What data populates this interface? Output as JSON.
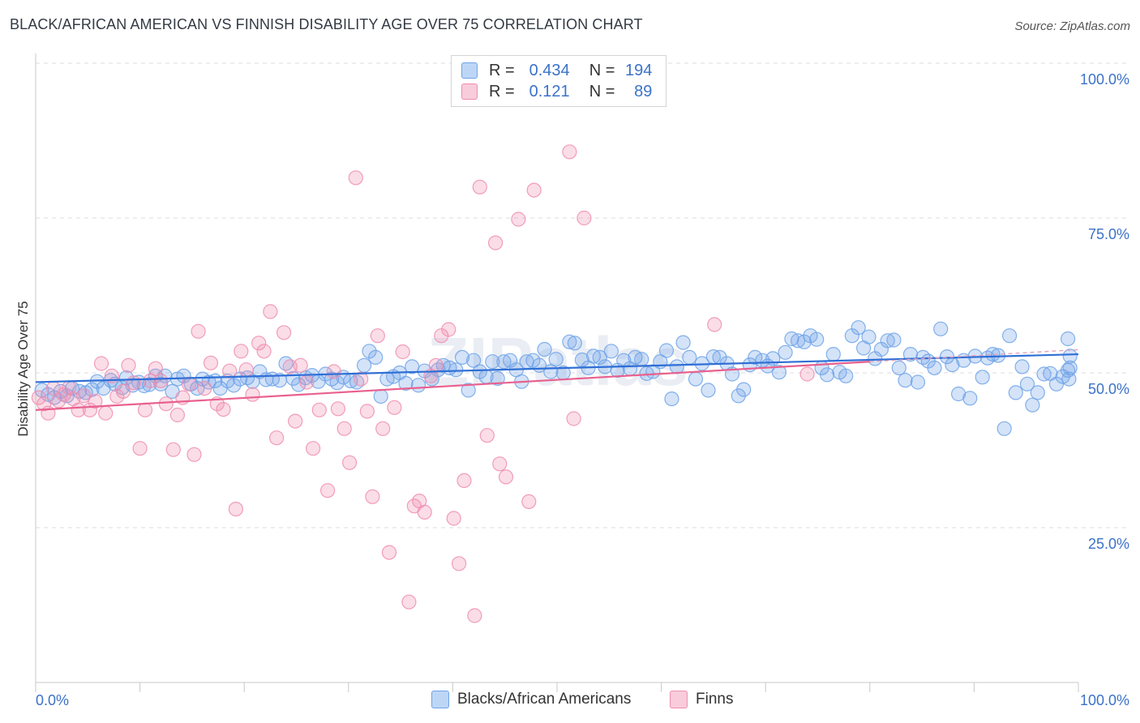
{
  "title": "BLACK/AFRICAN AMERICAN VS FINNISH DISABILITY AGE OVER 75 CORRELATION CHART",
  "source": "Source: ZipAtlas.com",
  "watermark": "ZIPatlas",
  "legend_top": {
    "r_label": "R =",
    "n_label": "N =",
    "rows": [
      {
        "r": "0.434",
        "n": "194",
        "color": "#6fa3e8"
      },
      {
        "r": "0.121",
        "n": "89",
        "color": "#f08db0"
      }
    ]
  },
  "bottom_legend": [
    "Blacks/African Americans",
    "Finns"
  ],
  "chart_data": {
    "type": "scatter",
    "xlabel": "",
    "ylabel": "Disability Age Over 75",
    "x_tick_labels": {
      "left": "0.0%",
      "right": "100.0%"
    },
    "y_tick_labels": [
      "100.0%",
      "75.0%",
      "50.0%",
      "25.0%"
    ],
    "xlim": [
      0,
      100
    ],
    "ylim": [
      0,
      100
    ],
    "grid": "horizontal dashed",
    "legend_position": "top-center",
    "series": [
      {
        "name": "Blacks/African Americans",
        "color": "#6fa3e8",
        "trend": {
          "x0": 0,
          "y0": 48.5,
          "x1": 100,
          "y1": 53.0
        },
        "points": [
          [
            0.6,
            47.2
          ],
          [
            1.2,
            46.5
          ],
          [
            1.8,
            46.0
          ],
          [
            2.4,
            47.0
          ],
          [
            3.0,
            46.3
          ],
          [
            3.5,
            47.5
          ],
          [
            4.2,
            47.0
          ],
          [
            4.8,
            46.8
          ],
          [
            5.4,
            47.3
          ],
          [
            5.9,
            48.6
          ],
          [
            6.5,
            47.5
          ],
          [
            7.2,
            48.8
          ],
          [
            7.6,
            48.2
          ],
          [
            8.3,
            47.6
          ],
          [
            8.7,
            49.2
          ],
          [
            9.3,
            48.0
          ],
          [
            9.9,
            48.5
          ],
          [
            10.4,
            47.9
          ],
          [
            10.9,
            48.1
          ],
          [
            11.5,
            49.5
          ],
          [
            12.0,
            48.2
          ],
          [
            12.4,
            49.5
          ],
          [
            13.1,
            47.0
          ],
          [
            13.6,
            49.0
          ],
          [
            14.2,
            49.5
          ],
          [
            14.9,
            48.2
          ],
          [
            15.5,
            47.5
          ],
          [
            16.0,
            49.0
          ],
          [
            16.6,
            48.5
          ],
          [
            17.2,
            48.7
          ],
          [
            17.7,
            47.5
          ],
          [
            18.4,
            48.7
          ],
          [
            19.0,
            48.0
          ],
          [
            19.6,
            49.0
          ],
          [
            20.3,
            49.2
          ],
          [
            20.8,
            48.6
          ],
          [
            21.5,
            50.2
          ],
          [
            22.1,
            48.9
          ],
          [
            22.7,
            49.0
          ],
          [
            23.4,
            48.8
          ],
          [
            24.0,
            51.5
          ],
          [
            24.7,
            49.1
          ],
          [
            25.2,
            48.1
          ],
          [
            25.9,
            49.2
          ],
          [
            26.5,
            49.6
          ],
          [
            27.1,
            48.6
          ],
          [
            27.8,
            49.8
          ],
          [
            28.4,
            49.0
          ],
          [
            28.9,
            48.4
          ],
          [
            29.5,
            49.3
          ],
          [
            30.2,
            48.7
          ],
          [
            30.8,
            48.5
          ],
          [
            31.5,
            51.2
          ],
          [
            32.0,
            53.5
          ],
          [
            32.6,
            52.5
          ],
          [
            33.1,
            46.2
          ],
          [
            33.7,
            49.0
          ],
          [
            34.3,
            49.4
          ],
          [
            34.9,
            50.0
          ],
          [
            35.5,
            48.3
          ],
          [
            36.1,
            51.0
          ],
          [
            36.7,
            48.0
          ],
          [
            37.3,
            50.3
          ],
          [
            38.0,
            49.0
          ],
          [
            38.6,
            50.5
          ],
          [
            39.1,
            51.2
          ],
          [
            39.7,
            50.8
          ],
          [
            40.3,
            50.5
          ],
          [
            40.9,
            52.5
          ],
          [
            41.5,
            47.2
          ],
          [
            42.0,
            52.0
          ],
          [
            42.6,
            50.2
          ],
          [
            43.2,
            49.4
          ],
          [
            43.8,
            51.8
          ],
          [
            44.3,
            49.1
          ],
          [
            44.9,
            51.8
          ],
          [
            45.5,
            52.0
          ],
          [
            46.1,
            50.5
          ],
          [
            46.6,
            48.6
          ],
          [
            47.1,
            51.8
          ],
          [
            47.7,
            52.0
          ],
          [
            48.3,
            51.2
          ],
          [
            48.8,
            53.8
          ],
          [
            49.4,
            50.2
          ],
          [
            49.9,
            52.2
          ],
          [
            50.6,
            50.0
          ],
          [
            51.2,
            55.0
          ],
          [
            51.7,
            54.8
          ],
          [
            52.4,
            52.1
          ],
          [
            53.0,
            50.8
          ],
          [
            53.5,
            52.7
          ],
          [
            54.1,
            52.5
          ],
          [
            54.6,
            51.0
          ],
          [
            55.2,
            53.5
          ],
          [
            55.8,
            50.4
          ],
          [
            56.4,
            52.0
          ],
          [
            57.0,
            50.7
          ],
          [
            57.5,
            52.5
          ],
          [
            58.1,
            52.2
          ],
          [
            58.6,
            49.9
          ],
          [
            59.2,
            50.2
          ],
          [
            59.9,
            51.8
          ],
          [
            60.5,
            53.6
          ],
          [
            61.0,
            45.8
          ],
          [
            61.5,
            51.0
          ],
          [
            62.1,
            54.9
          ],
          [
            62.7,
            52.5
          ],
          [
            63.3,
            49.0
          ],
          [
            63.9,
            51.5
          ],
          [
            64.5,
            47.2
          ],
          [
            65.0,
            52.6
          ],
          [
            65.6,
            52.5
          ],
          [
            66.3,
            51.5
          ],
          [
            66.8,
            49.8
          ],
          [
            67.4,
            46.3
          ],
          [
            67.9,
            47.3
          ],
          [
            68.5,
            51.3
          ],
          [
            69.0,
            52.5
          ],
          [
            69.7,
            52.0
          ],
          [
            70.2,
            51.1
          ],
          [
            70.7,
            52.3
          ],
          [
            71.3,
            50.1
          ],
          [
            71.9,
            53.3
          ],
          [
            72.5,
            55.5
          ],
          [
            73.1,
            55.2
          ],
          [
            73.7,
            55.0
          ],
          [
            74.3,
            56.0
          ],
          [
            74.9,
            55.4
          ],
          [
            75.4,
            50.8
          ],
          [
            75.9,
            49.7
          ],
          [
            76.5,
            53.0
          ],
          [
            77.1,
            50.1
          ],
          [
            77.7,
            49.5
          ],
          [
            78.3,
            56.0
          ],
          [
            78.9,
            57.3
          ],
          [
            79.4,
            54.0
          ],
          [
            79.9,
            55.8
          ],
          [
            80.5,
            52.3
          ],
          [
            81.1,
            53.8
          ],
          [
            81.7,
            55.2
          ],
          [
            82.3,
            55.3
          ],
          [
            82.8,
            50.8
          ],
          [
            83.4,
            48.8
          ],
          [
            83.9,
            53.0
          ],
          [
            84.6,
            48.5
          ],
          [
            85.1,
            52.5
          ],
          [
            85.6,
            51.9
          ],
          [
            86.2,
            50.8
          ],
          [
            86.8,
            57.1
          ],
          [
            87.4,
            52.6
          ],
          [
            87.9,
            51.3
          ],
          [
            88.5,
            46.6
          ],
          [
            89.0,
            52.0
          ],
          [
            89.6,
            45.9
          ],
          [
            90.1,
            52.7
          ],
          [
            90.8,
            49.3
          ],
          [
            91.3,
            52.4
          ],
          [
            91.8,
            53.0
          ],
          [
            92.3,
            52.8
          ],
          [
            92.9,
            41.0
          ],
          [
            93.4,
            56.0
          ],
          [
            94.0,
            46.8
          ],
          [
            94.6,
            51.0
          ],
          [
            95.1,
            48.2
          ],
          [
            95.6,
            44.8
          ],
          [
            96.1,
            46.8
          ],
          [
            96.7,
            49.8
          ],
          [
            97.3,
            49.9
          ],
          [
            97.9,
            48.2
          ],
          [
            98.5,
            49.4
          ],
          [
            99.0,
            55.5
          ],
          [
            99.2,
            52.7
          ],
          [
            99.0,
            50.4
          ],
          [
            99.1,
            49.0
          ],
          [
            99.2,
            50.8
          ]
        ]
      },
      {
        "name": "Finns",
        "color": "#f08db0",
        "trend": {
          "x0": 0,
          "y0": 44.0,
          "x1": 80,
          "y1": 51.8
        },
        "points": [
          [
            0.3,
            46.0
          ],
          [
            0.8,
            45.0
          ],
          [
            1.2,
            43.5
          ],
          [
            1.7,
            47.5
          ],
          [
            2.2,
            45.5
          ],
          [
            2.7,
            46.5
          ],
          [
            3.2,
            47.6
          ],
          [
            3.6,
            45.8
          ],
          [
            4.1,
            44.0
          ],
          [
            4.6,
            46.3
          ],
          [
            5.2,
            44.0
          ],
          [
            5.7,
            45.4
          ],
          [
            6.3,
            51.5
          ],
          [
            6.7,
            43.5
          ],
          [
            7.3,
            49.5
          ],
          [
            7.8,
            46.2
          ],
          [
            8.4,
            47.0
          ],
          [
            8.9,
            51.2
          ],
          [
            9.4,
            48.4
          ],
          [
            10.0,
            37.8
          ],
          [
            10.5,
            44.0
          ],
          [
            11.0,
            48.7
          ],
          [
            11.5,
            50.7
          ],
          [
            12.0,
            48.7
          ],
          [
            12.5,
            45.0
          ],
          [
            13.2,
            37.6
          ],
          [
            13.6,
            43.2
          ],
          [
            14.1,
            46.0
          ],
          [
            14.7,
            48.2
          ],
          [
            15.2,
            36.8
          ],
          [
            15.6,
            56.7
          ],
          [
            16.2,
            47.5
          ],
          [
            16.8,
            51.6
          ],
          [
            17.4,
            45.0
          ],
          [
            18.0,
            44.1
          ],
          [
            18.6,
            50.3
          ],
          [
            19.2,
            28.0
          ],
          [
            19.7,
            53.5
          ],
          [
            20.2,
            50.5
          ],
          [
            20.8,
            46.5
          ],
          [
            21.4,
            54.8
          ],
          [
            21.9,
            53.5
          ],
          [
            22.5,
            59.9
          ],
          [
            23.1,
            39.5
          ],
          [
            23.8,
            56.5
          ],
          [
            24.4,
            51.0
          ],
          [
            24.9,
            42.2
          ],
          [
            25.4,
            51.2
          ],
          [
            26.0,
            48.5
          ],
          [
            26.6,
            37.8
          ],
          [
            27.2,
            44.0
          ],
          [
            28.0,
            31.0
          ],
          [
            28.6,
            50.2
          ],
          [
            29.0,
            44.2
          ],
          [
            29.6,
            41.0
          ],
          [
            30.1,
            35.5
          ],
          [
            30.7,
            81.5
          ],
          [
            31.2,
            49.0
          ],
          [
            31.8,
            43.8
          ],
          [
            32.3,
            30.0
          ],
          [
            32.8,
            56.0
          ],
          [
            33.3,
            41.0
          ],
          [
            33.9,
            21.0
          ],
          [
            34.4,
            44.4
          ],
          [
            35.2,
            53.4
          ],
          [
            35.8,
            13.0
          ],
          [
            36.3,
            28.5
          ],
          [
            36.8,
            29.3
          ],
          [
            37.3,
            27.5
          ],
          [
            37.9,
            49.5
          ],
          [
            38.4,
            51.2
          ],
          [
            38.9,
            56.0
          ],
          [
            39.6,
            57.0
          ],
          [
            40.1,
            26.5
          ],
          [
            40.6,
            19.2
          ],
          [
            41.1,
            32.6
          ],
          [
            42.1,
            10.8
          ],
          [
            42.6,
            80.0
          ],
          [
            43.3,
            39.9
          ],
          [
            44.1,
            71.0
          ],
          [
            44.5,
            35.3
          ],
          [
            45.1,
            33.2
          ],
          [
            46.3,
            74.8
          ],
          [
            47.3,
            29.2
          ],
          [
            47.8,
            79.5
          ],
          [
            51.2,
            85.7
          ],
          [
            51.6,
            42.6
          ],
          [
            52.6,
            75.0
          ],
          [
            65.1,
            57.8
          ],
          [
            74.0,
            49.8
          ]
        ]
      }
    ]
  }
}
